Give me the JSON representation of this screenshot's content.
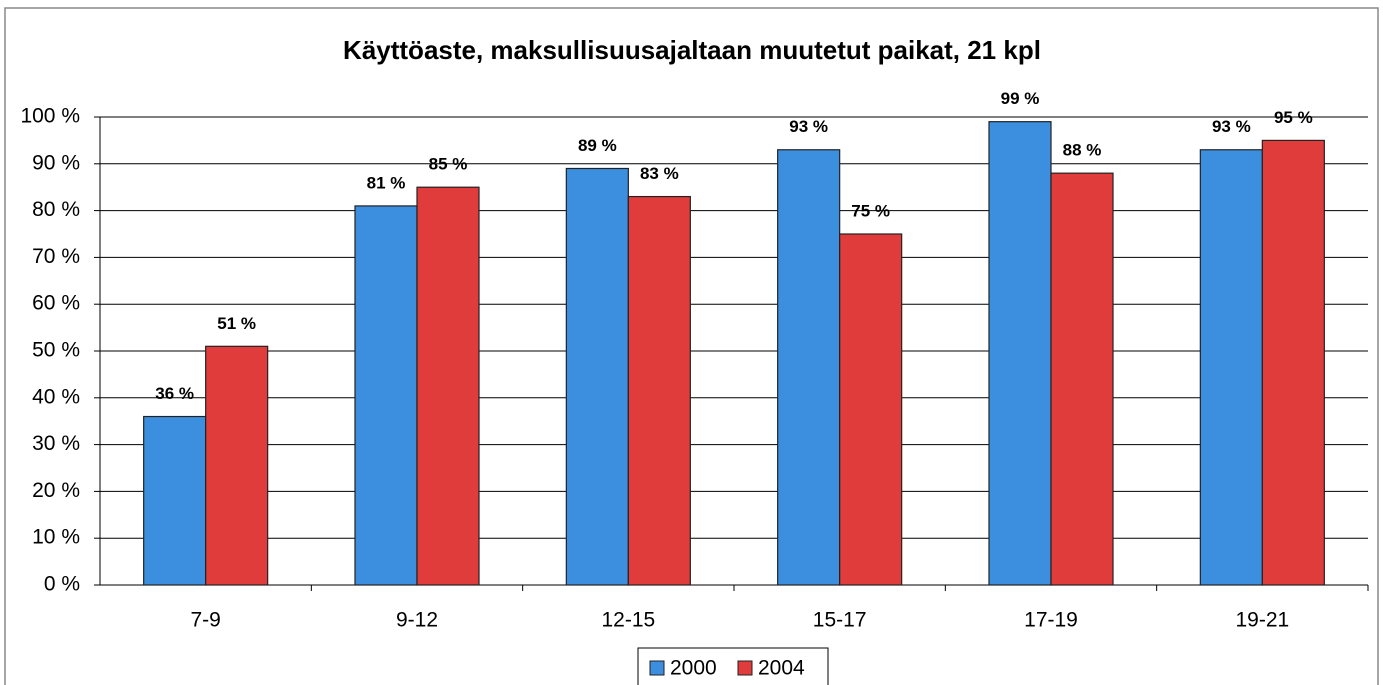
{
  "chart_data": {
    "type": "bar",
    "title": "Käyttöaste, maksullisuusajaltaan muutetut paikat, 21 kpl",
    "categories": [
      "7-9",
      "9-12",
      "12-15",
      "15-17",
      "17-19",
      "19-21"
    ],
    "series": [
      {
        "name": "2000",
        "color": "#3b8fde",
        "values": [
          36,
          81,
          89,
          93,
          99,
          93
        ],
        "value_labels": [
          "36 %",
          "81 %",
          "89 %",
          "93 %",
          "99 %",
          "93 %"
        ]
      },
      {
        "name": "2004",
        "color": "#e03c3c",
        "values": [
          51,
          85,
          83,
          75,
          88,
          95
        ],
        "value_labels": [
          "51 %",
          "85 %",
          "83 %",
          "75 %",
          "88 %",
          "95 %"
        ]
      }
    ],
    "ylim": [
      0,
      100
    ],
    "yticks": [
      {
        "value": 0,
        "label": "0 %"
      },
      {
        "value": 10,
        "label": "10 %"
      },
      {
        "value": 20,
        "label": "20 %"
      },
      {
        "value": 30,
        "label": "30 %"
      },
      {
        "value": 40,
        "label": "40 %"
      },
      {
        "value": 50,
        "label": "50 %"
      },
      {
        "value": 60,
        "label": "60 %"
      },
      {
        "value": 70,
        "label": "70 %"
      },
      {
        "value": 80,
        "label": "80 %"
      },
      {
        "value": 90,
        "label": "90 %"
      },
      {
        "value": 100,
        "label": "100 %"
      }
    ],
    "grid": true,
    "legend": "bottom"
  }
}
